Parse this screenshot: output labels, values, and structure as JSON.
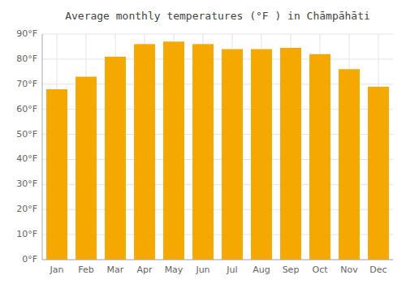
{
  "chart_data": {
    "type": "bar",
    "title": "Average monthly temperatures (°F ) in Chāmpāhāti",
    "categories": [
      "Jan",
      "Feb",
      "Mar",
      "Apr",
      "May",
      "Jun",
      "Jul",
      "Aug",
      "Sep",
      "Oct",
      "Nov",
      "Dec"
    ],
    "values": [
      68,
      73,
      81,
      86,
      87,
      86,
      84,
      84,
      84.5,
      82,
      76,
      69
    ],
    "color": "#F5A800",
    "ylim": [
      0,
      90
    ],
    "yticks": [
      {
        "value": 0,
        "label": "0°F"
      },
      {
        "value": 10,
        "label": "10°F"
      },
      {
        "value": 20,
        "label": "20°F"
      },
      {
        "value": 30,
        "label": "30°F"
      },
      {
        "value": 40,
        "label": "40°F"
      },
      {
        "value": 50,
        "label": "50°F"
      },
      {
        "value": 60,
        "label": "60°F"
      },
      {
        "value": 70,
        "label": "70°F"
      },
      {
        "value": 80,
        "label": "80°F"
      },
      {
        "value": 90,
        "label": "90°F"
      }
    ],
    "grid": true
  }
}
